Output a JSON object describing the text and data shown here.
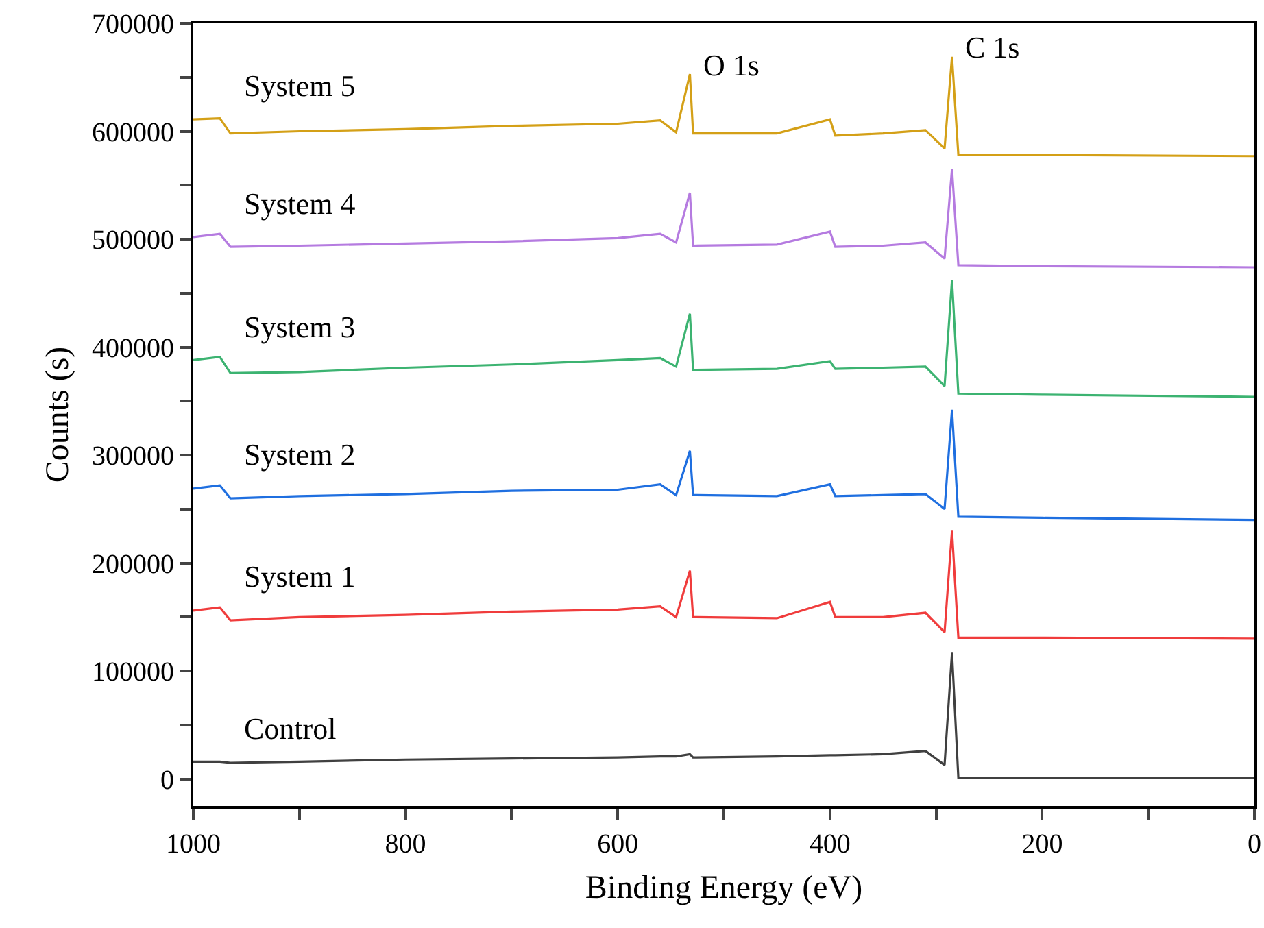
{
  "chart_data": {
    "type": "line",
    "xlabel": "Binding Energy (eV)",
    "ylabel": "Counts (s)",
    "xlim": [
      1000,
      0
    ],
    "ylim": [
      -25000,
      700000
    ],
    "xticks": [
      1000,
      {
        "value": 900,
        "label": null
      },
      800,
      {
        "value": 700,
        "label": null
      },
      600,
      {
        "value": 500,
        "label": null
      },
      400,
      {
        "value": 300,
        "label": null
      },
      200,
      {
        "value": 100,
        "label": null
      },
      0
    ],
    "yticks": [
      0,
      {
        "value": 50000,
        "label": null
      },
      100000,
      {
        "value": 150000,
        "label": null
      },
      200000,
      {
        "value": 250000,
        "label": null
      },
      300000,
      {
        "value": 350000,
        "label": null
      },
      400000,
      {
        "value": 450000,
        "label": null
      },
      500000,
      {
        "value": 550000,
        "label": null
      },
      600000,
      {
        "value": 650000,
        "label": null
      },
      700000
    ],
    "grid": false,
    "legend": false,
    "marker": "none",
    "line_style": "solid",
    "x": [
      1000,
      975,
      965,
      900,
      800,
      700,
      600,
      560,
      545,
      532,
      529,
      450,
      400,
      395,
      350,
      310,
      292,
      285,
      279,
      200,
      0
    ],
    "series": [
      {
        "name": "Control",
        "color": "#404040",
        "values": [
          16000,
          16000,
          15000,
          16000,
          18000,
          19000,
          20000,
          21000,
          21000,
          23000,
          20000,
          21000,
          22000,
          22000,
          23000,
          26000,
          13000,
          117000,
          1000,
          1000,
          1000
        ]
      },
      {
        "name": "System 1",
        "color": "#f03c3c",
        "values": [
          156000,
          159000,
          147000,
          150000,
          152000,
          155000,
          157000,
          160000,
          150000,
          193000,
          150000,
          149000,
          164000,
          150000,
          150000,
          154000,
          136000,
          230000,
          131000,
          131000,
          130000
        ]
      },
      {
        "name": "System 2",
        "color": "#1f6fe0",
        "values": [
          269000,
          272000,
          260000,
          262000,
          264000,
          267000,
          268000,
          273000,
          263000,
          304000,
          263000,
          262000,
          273000,
          262000,
          263000,
          264000,
          250000,
          342000,
          243000,
          242000,
          240000
        ]
      },
      {
        "name": "System 3",
        "color": "#3cb371",
        "values": [
          388000,
          391000,
          376000,
          377000,
          381000,
          384000,
          388000,
          390000,
          382000,
          431000,
          379000,
          380000,
          387000,
          380000,
          381000,
          382000,
          364000,
          462000,
          357000,
          356000,
          354000
        ]
      },
      {
        "name": "System 4",
        "color": "#b57be0",
        "values": [
          502000,
          505000,
          493000,
          494000,
          496000,
          498000,
          501000,
          505000,
          497000,
          543000,
          494000,
          495000,
          507000,
          493000,
          494000,
          497000,
          482000,
          565000,
          476000,
          475000,
          474000
        ]
      },
      {
        "name": "System 5",
        "color": "#d4a017",
        "values": [
          611000,
          612000,
          598000,
          600000,
          602000,
          605000,
          607000,
          610000,
          599000,
          653000,
          598000,
          598000,
          611000,
          596000,
          598000,
          601000,
          584000,
          669000,
          578000,
          578000,
          577000
        ]
      }
    ],
    "annotations": [
      {
        "text": "O 1s",
        "x": 532,
        "y": 653000
      },
      {
        "text": "C 1s",
        "x": 285,
        "y": 669000
      }
    ]
  }
}
